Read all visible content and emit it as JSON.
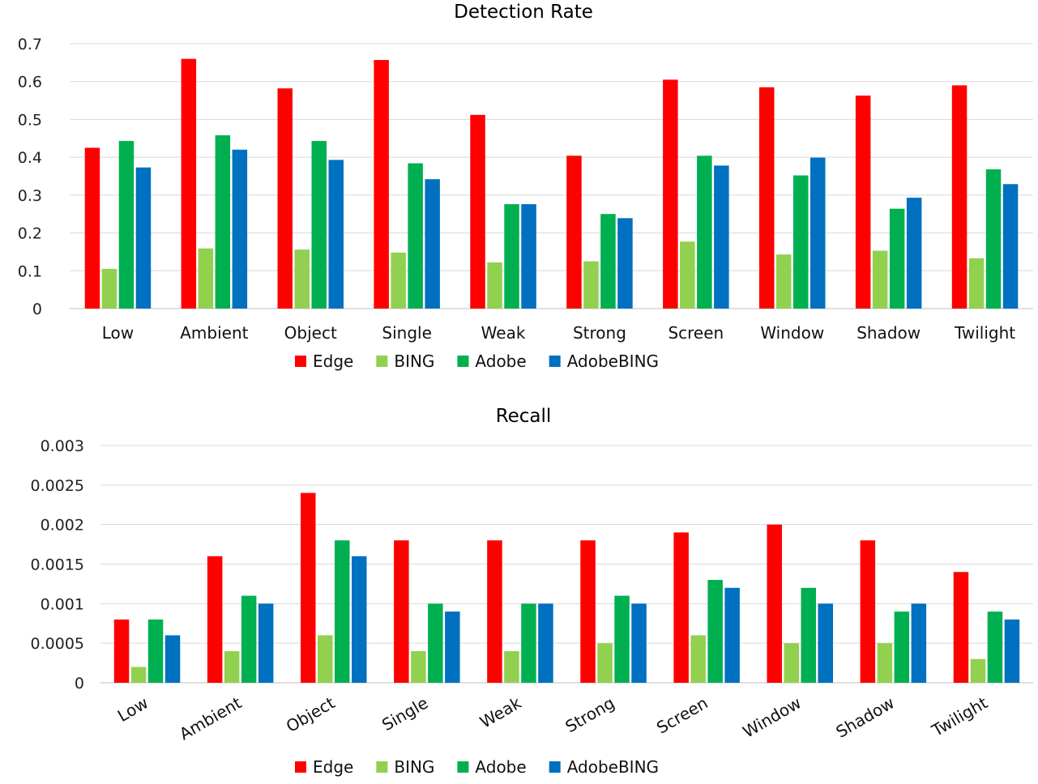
{
  "chart_data": [
    {
      "type": "bar",
      "title": "Detection Rate",
      "xlabel": "",
      "ylabel": "",
      "ylim": [
        0,
        0.7
      ],
      "yticks": [
        "0",
        "0.1",
        "0.2",
        "0.3",
        "0.4",
        "0.5",
        "0.6",
        "0.7"
      ],
      "grid": true,
      "legend_position": "bottom",
      "category_label_rotation": "horizontal",
      "categories": [
        "Low",
        "Ambient",
        "Object",
        "Single",
        "Weak",
        "Strong",
        "Screen",
        "Window",
        "Shadow",
        "Twilight"
      ],
      "series": [
        {
          "name": "Edge",
          "color": "#ff0000",
          "values": [
            0.425,
            0.66,
            0.582,
            0.657,
            0.512,
            0.404,
            0.605,
            0.585,
            0.563,
            0.59
          ]
        },
        {
          "name": "BING",
          "color": "#92d050",
          "values": [
            0.105,
            0.159,
            0.156,
            0.148,
            0.122,
            0.125,
            0.177,
            0.143,
            0.153,
            0.133
          ]
        },
        {
          "name": "Adobe",
          "color": "#00b050",
          "values": [
            0.443,
            0.458,
            0.443,
            0.384,
            0.276,
            0.25,
            0.404,
            0.352,
            0.264,
            0.368
          ]
        },
        {
          "name": "AdobeBING",
          "color": "#0070c0",
          "values": [
            0.373,
            0.42,
            0.393,
            0.342,
            0.276,
            0.239,
            0.378,
            0.399,
            0.293,
            0.329
          ]
        }
      ]
    },
    {
      "type": "bar",
      "title": "Recall",
      "xlabel": "",
      "ylabel": "",
      "ylim": [
        0,
        0.003
      ],
      "yticks": [
        "0",
        "0.0005",
        "0.001",
        "0.0015",
        "0.002",
        "0.0025",
        "0.003"
      ],
      "grid": true,
      "legend_position": "bottom",
      "category_label_rotation": "diagonal",
      "categories": [
        "Low",
        "Ambient",
        "Object",
        "Single",
        "Weak",
        "Strong",
        "Screen",
        "Window",
        "Shadow",
        "Twilight"
      ],
      "series": [
        {
          "name": "Edge",
          "color": "#ff0000",
          "values": [
            0.0008,
            0.0016,
            0.0024,
            0.0018,
            0.0018,
            0.0018,
            0.0019,
            0.002,
            0.0018,
            0.0014
          ]
        },
        {
          "name": "BING",
          "color": "#92d050",
          "values": [
            0.0002,
            0.0004,
            0.0006,
            0.0004,
            0.0004,
            0.0005,
            0.0006,
            0.0005,
            0.0005,
            0.0003
          ]
        },
        {
          "name": "Adobe",
          "color": "#00b050",
          "values": [
            0.0008,
            0.0011,
            0.0018,
            0.001,
            0.001,
            0.0011,
            0.0013,
            0.0012,
            0.0009,
            0.0009
          ]
        },
        {
          "name": "AdobeBING",
          "color": "#0070c0",
          "values": [
            0.0006,
            0.001,
            0.0016,
            0.0009,
            0.001,
            0.001,
            0.0012,
            0.001,
            0.001,
            0.0008
          ]
        }
      ]
    }
  ]
}
